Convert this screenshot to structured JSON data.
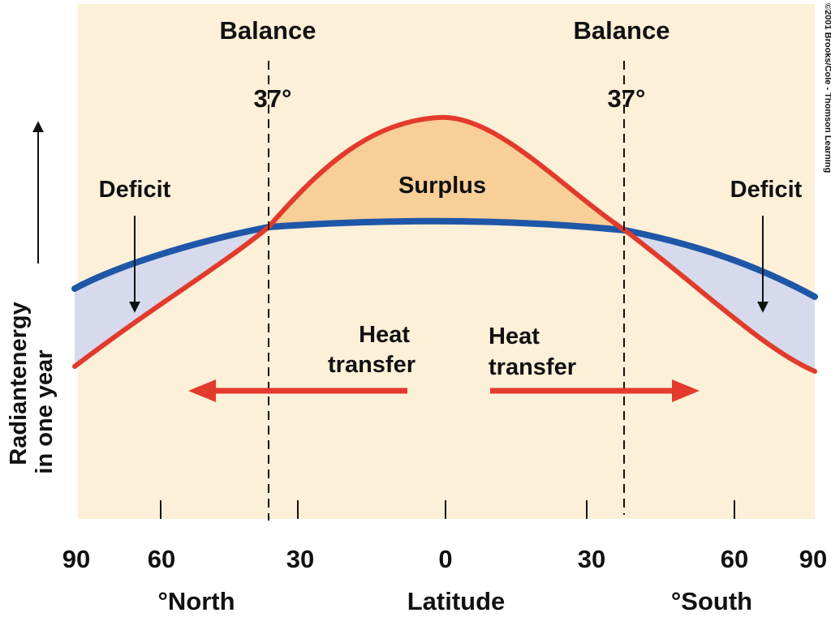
{
  "labels": {
    "balance_left": "Balance",
    "balance_right": "Balance",
    "angle_left": "37°",
    "angle_right": "37°",
    "deficit_left": "Deficit",
    "deficit_right": "Deficit",
    "surplus": "Surplus",
    "heat_left_line1": "Heat",
    "heat_left_line2": "transfer",
    "heat_right_line1": "Heat",
    "heat_right_line2": "transfer",
    "y_axis_line1": "Radiantenergy",
    "y_axis_line2": "in one year",
    "x_north": "°North",
    "x_center": "Latitude",
    "x_south": "°South",
    "copyright": "©2001 Brooks/Cole - Thomson Learning"
  },
  "ticks": [
    "90",
    "60",
    "30",
    "0",
    "30",
    "60",
    "90"
  ],
  "colors": {
    "background": "#fdf0d8",
    "incoming_curve": "#e23a2c",
    "outgoing_curve": "#1f57a8",
    "surplus_fill": "#f9cf98",
    "deficit_fill": "#d6daec",
    "arrow": "#e23a2c"
  },
  "curves": {
    "incoming_solar_radiation": {
      "latitudes": [
        -90,
        -60,
        -37,
        -30,
        0,
        30,
        37,
        60,
        90
      ],
      "relative_energy": [
        0.23,
        0.41,
        0.6,
        0.65,
        0.92,
        0.68,
        0.6,
        0.36,
        0.22
      ]
    },
    "outgoing_infrared_radiation": {
      "latitudes": [
        -90,
        -60,
        -37,
        -30,
        0,
        30,
        37,
        60,
        90
      ],
      "relative_energy": [
        0.46,
        0.54,
        0.6,
        0.61,
        0.62,
        0.61,
        0.6,
        0.53,
        0.46
      ]
    }
  }
}
